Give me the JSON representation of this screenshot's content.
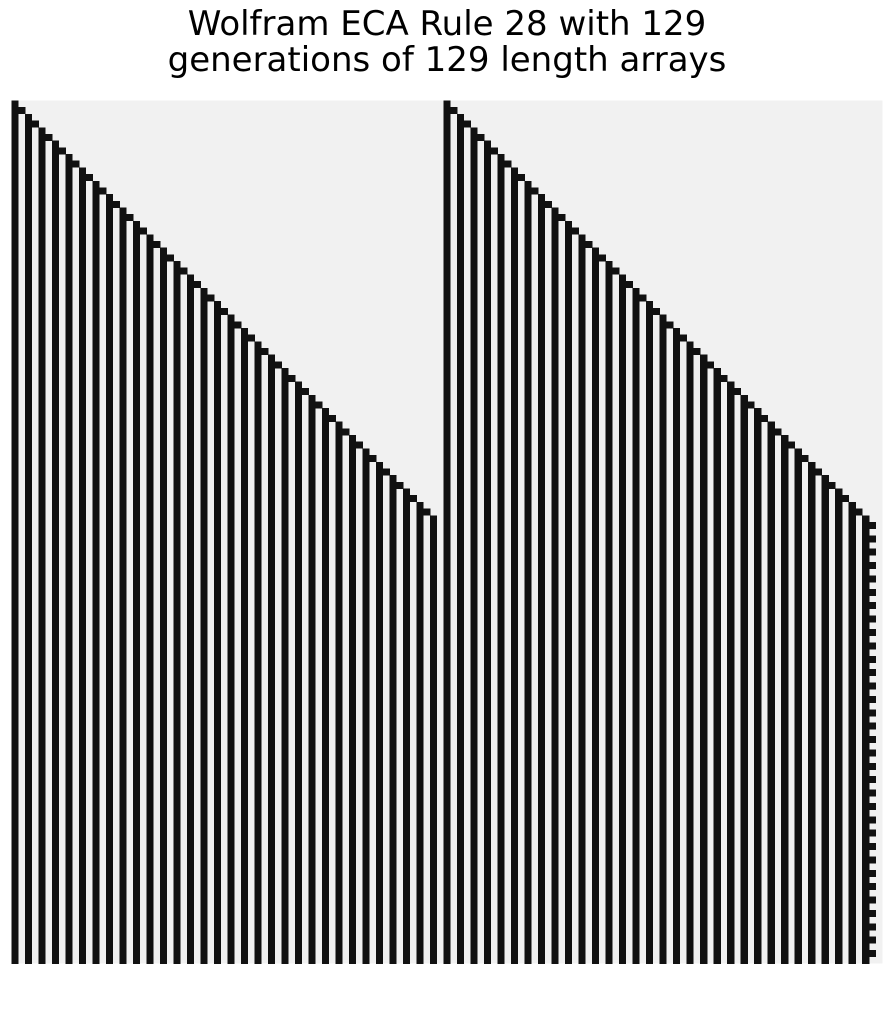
{
  "title_line1": "Wolfram ECA Rule 28 with 129",
  "title_line2": "generations of 129 length arrays",
  "chart_data": {
    "type": "heatmap",
    "title": "Wolfram ECA Rule 28 with 129 generations of 129 length arrays",
    "rule": 28,
    "generations": 129,
    "width": 129,
    "axes": "off",
    "grid": false,
    "colors": {
      "on": "#111111",
      "off": "#f1f1f1"
    },
    "initial_live_cells": [
      0,
      64
    ],
    "cells": "2D array of 0/1 states: row 0 is the initial generation, each subsequent row is produced from the previous one by Wolfram elementary cellular automaton rule 28 on a periodic (wrapping) array of length 129"
  }
}
